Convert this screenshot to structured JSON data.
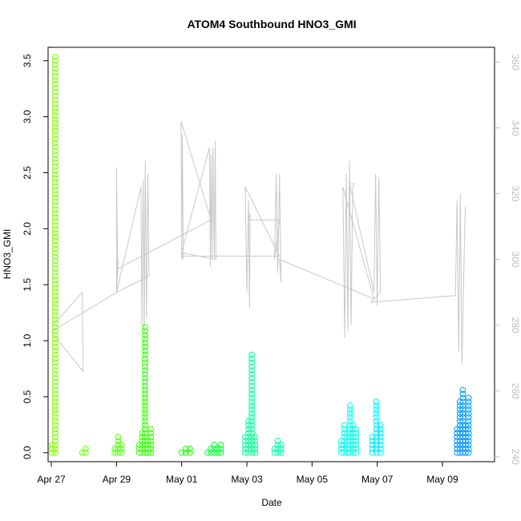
{
  "chart_data": {
    "type": "scatter",
    "title": "ATOM4 Southbound HNO3_GMI",
    "xlabel": "Date",
    "ylabel": "HNO3_GMI",
    "y2label": "",
    "xlim": [
      -0.1,
      13.6
    ],
    "ylim": [
      -0.08,
      3.62
    ],
    "y2lim": [
      238.5,
      364.5
    ],
    "x_ticks": [
      {
        "value": 0,
        "label": "Apr 27"
      },
      {
        "value": 2,
        "label": "Apr 29"
      },
      {
        "value": 4,
        "label": "May 01"
      },
      {
        "value": 6,
        "label": "May 03"
      },
      {
        "value": 8,
        "label": "May 05"
      },
      {
        "value": 10,
        "label": "May 07"
      },
      {
        "value": 12,
        "label": "May 09"
      }
    ],
    "y_ticks": [
      {
        "value": 0.0,
        "label": "0.0"
      },
      {
        "value": 0.5,
        "label": "0.5"
      },
      {
        "value": 1.0,
        "label": "1.0"
      },
      {
        "value": 1.5,
        "label": "1.5"
      },
      {
        "value": 2.0,
        "label": "2.0"
      },
      {
        "value": 2.5,
        "label": "2.5"
      },
      {
        "value": 3.0,
        "label": "3.0"
      },
      {
        "value": 3.5,
        "label": "3.5"
      }
    ],
    "y2_ticks": [
      {
        "value": 240,
        "label": "240"
      },
      {
        "value": 260,
        "label": "260"
      },
      {
        "value": 280,
        "label": "280"
      },
      {
        "value": 300,
        "label": "300"
      },
      {
        "value": 320,
        "label": "320"
      },
      {
        "value": 340,
        "label": "340"
      },
      {
        "value": 360,
        "label": "360"
      }
    ],
    "grid": false,
    "legend": "none",
    "flights": [
      {
        "x_start": 0.02,
        "x_end": 0.12,
        "y_max": 3.56,
        "y_base_max": 0.25,
        "color": "#7fff00"
      },
      {
        "x_start": 0.95,
        "x_end": 1.05,
        "y_max": 0.04,
        "y_base_max": 0.04,
        "color": "#66ff00"
      },
      {
        "x_start": 1.95,
        "x_end": 2.15,
        "y_max": 0.16,
        "y_base_max": 0.16,
        "color": "#4dff00"
      },
      {
        "x_start": 2.7,
        "x_end": 3.05,
        "y_max": 1.14,
        "y_base_max": 0.25,
        "color": "#33ff00"
      },
      {
        "x_start": 4.0,
        "x_end": 4.25,
        "y_max": 0.06,
        "y_base_max": 0.06,
        "color": "#1aff00"
      },
      {
        "x_start": 4.8,
        "x_end": 5.2,
        "y_max": 0.08,
        "y_base_max": 0.08,
        "color": "#00ff33"
      },
      {
        "x_start": 5.95,
        "x_end": 6.25,
        "y_max": 0.9,
        "y_base_max": 0.35,
        "color": "#00ff99"
      },
      {
        "x_start": 6.85,
        "x_end": 7.05,
        "y_max": 0.13,
        "y_base_max": 0.13,
        "color": "#00ffaa"
      },
      {
        "x_start": 8.9,
        "x_end": 9.35,
        "y_max": 0.42,
        "y_base_max": 0.3,
        "color": "#00ffee"
      },
      {
        "x_start": 9.85,
        "x_end": 10.1,
        "y_max": 0.47,
        "y_base_max": 0.4,
        "color": "#00f0ff"
      },
      {
        "x_start": 12.45,
        "x_end": 12.8,
        "y_max": 0.59,
        "y_base_max": 0.59,
        "color": "#0099ff"
      }
    ],
    "secondary_series": {
      "name": "",
      "color": "#c8c8c8",
      "x": [
        0.05,
        0.95,
        0.97,
        0.0,
        1.0,
        2.0,
        2.0,
        2.03,
        2.0,
        2.05,
        2.0,
        2.75,
        2.78,
        2.82,
        2.85,
        2.88,
        2.92,
        2.96,
        3.0,
        2.0,
        2.0,
        4.9,
        3.98,
        4.0,
        4.02,
        4.05,
        3.99,
        4.85,
        4.88,
        4.9,
        4.93,
        4.96,
        5.0,
        5.03,
        5.05,
        4.0,
        4.1,
        7.0,
        5.95,
        6.0,
        6.05,
        6.08,
        6.1,
        6.05,
        7.0,
        6.85,
        6.9,
        6.95,
        7.0,
        7.05,
        7.0,
        9.9,
        8.95,
        9.0,
        9.05,
        9.1,
        9.15,
        9.2,
        9.25,
        9.3,
        9.15,
        9.9,
        9.95,
        10.0,
        10.05,
        10.1,
        9.8,
        12.4,
        12.45,
        12.5,
        12.55,
        12.6,
        12.7
      ],
      "y": [
        280,
        290,
        266,
        278,
        284,
        290,
        328,
        300,
        290,
        300,
        290,
        322,
        280,
        324,
        278,
        330,
        282,
        326,
        295,
        290,
        297,
        312,
        342,
        300,
        338,
        300,
        302,
        334,
        298,
        332,
        300,
        334,
        300,
        336,
        300,
        302,
        301,
        301,
        322,
        290,
        318,
        285,
        314,
        312,
        312,
        300,
        326,
        296,
        326,
        293,
        300,
        288,
        322,
        276,
        326,
        278,
        330,
        280,
        322,
        323,
        323,
        290,
        326,
        286,
        325,
        290,
        287,
        289,
        318,
        272,
        320,
        268,
        316
      ]
    }
  }
}
